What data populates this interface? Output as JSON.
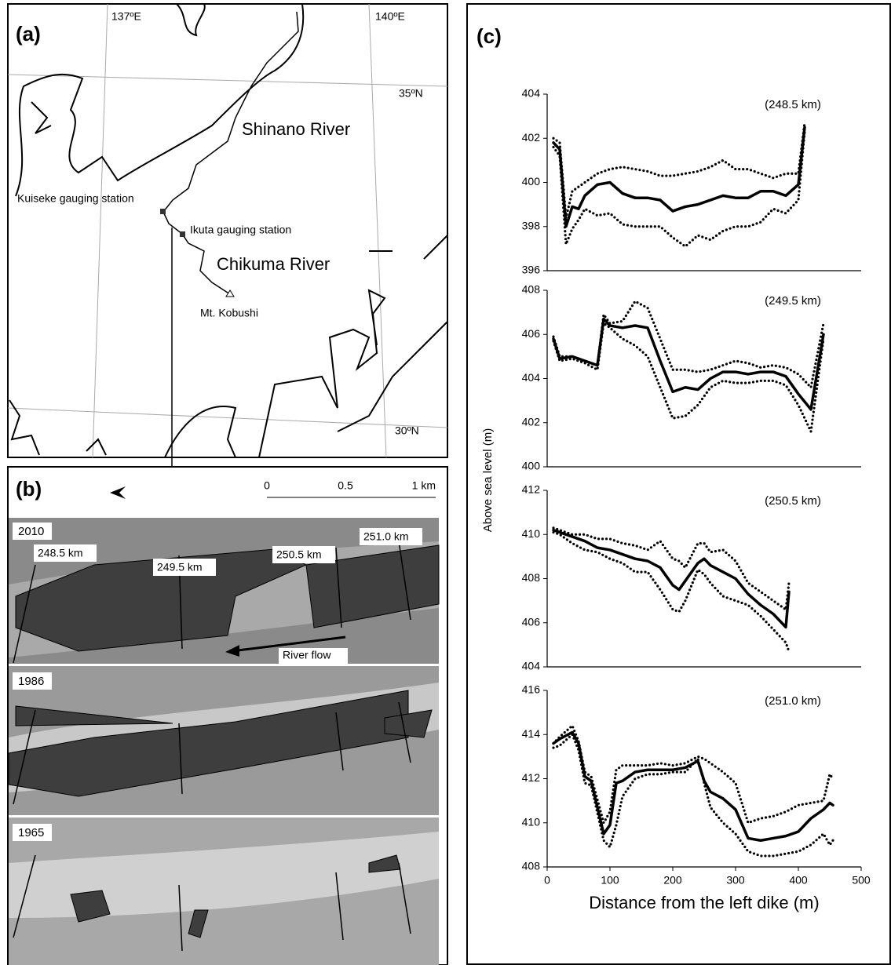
{
  "panel_a": {
    "label": "(a)",
    "lon_labels": [
      "137ºE",
      "140ºE"
    ],
    "lat_labels": [
      "35ºN",
      "30ºN"
    ],
    "rivers": [
      "Shinano River",
      "Chikuma River"
    ],
    "places": [
      "Kuiseke gauging station",
      "Ikuta gauging station",
      "Mt. Kobushi"
    ]
  },
  "panel_b": {
    "label": "(b)",
    "scale_labels": [
      "0",
      "0.5",
      "1 km"
    ],
    "years": [
      "2010",
      "1986",
      "1965"
    ],
    "sections": [
      "248.5 km",
      "249.5 km",
      "250.5 km",
      "251.0 km"
    ],
    "flow_label": "River flow"
  },
  "panel_c": {
    "label": "(c)",
    "y_label": "Above sea level (m)",
    "x_label": "Distance from the left dike (m)"
  },
  "chart_data": [
    {
      "type": "line",
      "annotation": "(248.5 km)",
      "xlim": [
        0,
        500
      ],
      "ylim": [
        396,
        404
      ],
      "yticks": [
        396,
        398,
        400,
        402,
        404
      ],
      "x": [
        10,
        20,
        30,
        40,
        50,
        60,
        80,
        100,
        120,
        140,
        160,
        180,
        200,
        220,
        240,
        260,
        280,
        300,
        320,
        340,
        360,
        380,
        400,
        410
      ],
      "series": [
        {
          "color": "#000000",
          "dash": false,
          "values": [
            401.8,
            401.5,
            398.0,
            398.9,
            398.8,
            399.4,
            399.9,
            400.0,
            399.5,
            399.3,
            399.3,
            399.2,
            398.7,
            398.9,
            399.0,
            399.2,
            399.4,
            399.3,
            399.3,
            399.6,
            399.6,
            399.4,
            399.9,
            402.5
          ]
        },
        {
          "color": "#000000",
          "dash": true,
          "values": [
            402.0,
            401.8,
            398.4,
            399.6,
            399.8,
            400.0,
            400.4,
            400.6,
            400.7,
            400.6,
            400.5,
            400.3,
            400.3,
            400.4,
            400.5,
            400.7,
            401.0,
            400.6,
            400.6,
            400.4,
            400.2,
            400.4,
            400.4,
            402.7
          ]
        },
        {
          "color": "#000000",
          "dash": true,
          "values": [
            401.6,
            401.2,
            397.2,
            397.9,
            398.3,
            398.8,
            398.5,
            398.6,
            398.1,
            398.0,
            398.0,
            398.0,
            397.5,
            397.1,
            397.6,
            397.4,
            397.8,
            398.0,
            398.0,
            398.2,
            398.8,
            398.6,
            399.2,
            402.3
          ]
        }
      ]
    },
    {
      "type": "line",
      "annotation": "(249.5 km)",
      "xlim": [
        0,
        500
      ],
      "ylim": [
        400,
        408
      ],
      "yticks": [
        400,
        402,
        404,
        406,
        408
      ],
      "x": [
        10,
        20,
        40,
        60,
        80,
        90,
        100,
        120,
        140,
        160,
        180,
        200,
        220,
        240,
        260,
        280,
        300,
        320,
        340,
        360,
        380,
        400,
        420,
        440
      ],
      "series": [
        {
          "color": "#000000",
          "dash": false,
          "values": [
            405.8,
            404.9,
            405.0,
            404.8,
            404.6,
            406.7,
            406.4,
            406.3,
            406.4,
            406.3,
            404.8,
            403.4,
            403.6,
            403.5,
            404.0,
            404.3,
            404.3,
            404.2,
            404.3,
            404.3,
            404.1,
            403.3,
            402.6,
            406.0
          ]
        },
        {
          "color": "#000000",
          "dash": true,
          "values": [
            405.9,
            405.0,
            405.0,
            404.8,
            404.6,
            406.9,
            406.5,
            406.6,
            407.5,
            407.2,
            405.8,
            404.4,
            404.4,
            404.3,
            404.4,
            404.6,
            404.8,
            404.7,
            404.5,
            404.6,
            404.5,
            404.2,
            403.6,
            406.5
          ]
        },
        {
          "color": "#000000",
          "dash": true,
          "values": [
            405.7,
            404.8,
            404.9,
            404.7,
            404.4,
            406.5,
            406.3,
            405.8,
            405.5,
            405.0,
            403.6,
            402.2,
            402.3,
            402.8,
            403.6,
            403.9,
            403.8,
            403.8,
            403.9,
            403.9,
            403.7,
            402.8,
            401.6,
            405.8
          ]
        }
      ]
    },
    {
      "type": "line",
      "annotation": "(250.5 km)",
      "xlim": [
        0,
        500
      ],
      "ylim": [
        404,
        412
      ],
      "yticks": [
        404,
        406,
        408,
        410,
        412
      ],
      "x": [
        10,
        20,
        40,
        60,
        80,
        100,
        120,
        140,
        160,
        180,
        200,
        210,
        220,
        240,
        250,
        260,
        280,
        300,
        320,
        340,
        360,
        380,
        385
      ],
      "series": [
        {
          "color": "#000000",
          "dash": false,
          "values": [
            410.2,
            410.1,
            409.9,
            409.7,
            409.4,
            409.3,
            409.1,
            408.9,
            408.8,
            408.5,
            407.7,
            407.5,
            407.9,
            408.7,
            408.9,
            408.6,
            408.3,
            408.0,
            407.3,
            406.8,
            406.4,
            405.8,
            407.4
          ]
        },
        {
          "color": "#000000",
          "dash": true,
          "values": [
            410.3,
            410.2,
            410.0,
            410.0,
            409.8,
            409.8,
            409.6,
            409.5,
            409.3,
            409.7,
            408.9,
            408.8,
            408.5,
            409.6,
            409.6,
            409.2,
            409.3,
            408.8,
            407.8,
            407.4,
            407.0,
            406.6,
            407.8
          ]
        },
        {
          "color": "#000000",
          "dash": true,
          "values": [
            410.1,
            410.0,
            409.6,
            409.3,
            409.2,
            408.9,
            408.7,
            408.3,
            408.3,
            407.5,
            406.6,
            406.5,
            407.0,
            408.4,
            408.2,
            407.8,
            407.2,
            407.0,
            406.8,
            406.3,
            405.7,
            405.1,
            404.7
          ]
        }
      ]
    },
    {
      "type": "line",
      "annotation": "(251.0 km)",
      "xlim": [
        0,
        500
      ],
      "xticks": [
        0,
        100,
        200,
        300,
        400,
        500
      ],
      "ylim": [
        408,
        416
      ],
      "yticks": [
        408,
        410,
        412,
        414,
        416
      ],
      "x": [
        10,
        20,
        40,
        50,
        60,
        70,
        90,
        100,
        110,
        120,
        140,
        160,
        180,
        200,
        220,
        240,
        250,
        260,
        280,
        300,
        320,
        340,
        360,
        380,
        400,
        420,
        440,
        450,
        455
      ],
      "series": [
        {
          "color": "#000000",
          "dash": false,
          "values": [
            413.6,
            413.8,
            414.1,
            413.6,
            412.1,
            411.9,
            409.5,
            409.9,
            411.8,
            411.9,
            412.3,
            412.4,
            412.4,
            412.4,
            412.5,
            412.8,
            411.9,
            411.4,
            411.1,
            410.6,
            409.3,
            409.2,
            409.3,
            409.4,
            409.6,
            410.2,
            410.6,
            410.9,
            410.8
          ]
        },
        {
          "color": "#000000",
          "dash": true,
          "values": [
            413.6,
            413.9,
            414.4,
            413.7,
            412.3,
            412.1,
            410.0,
            410.5,
            412.4,
            412.6,
            412.6,
            412.6,
            412.7,
            412.6,
            412.7,
            413.0,
            412.9,
            412.7,
            412.3,
            411.8,
            410.0,
            410.2,
            410.3,
            410.5,
            410.8,
            410.9,
            411.0,
            412.2,
            412.0
          ]
        },
        {
          "color": "#000000",
          "dash": true,
          "values": [
            413.4,
            413.5,
            414.0,
            413.3,
            411.8,
            411.7,
            409.2,
            408.9,
            409.9,
            411.2,
            412.0,
            412.2,
            412.2,
            412.3,
            412.3,
            412.9,
            411.8,
            410.7,
            410.0,
            409.5,
            408.7,
            408.5,
            408.5,
            408.6,
            408.7,
            409.0,
            409.5,
            409.0,
            409.2
          ]
        }
      ]
    }
  ]
}
